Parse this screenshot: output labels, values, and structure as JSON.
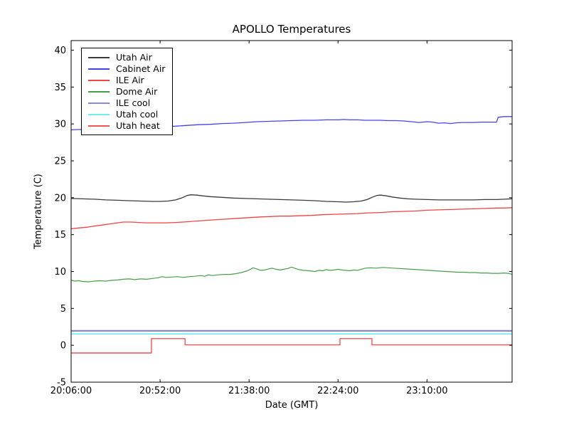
{
  "figure": {
    "background": "#ffffff",
    "axes_background": "#ffffff",
    "spine_color": "#000000"
  },
  "chart_data": {
    "type": "line",
    "title": "APOLLO Temperatures",
    "xlabel": "Date (GMT)",
    "ylabel": "Temperature (C)",
    "grid": false,
    "legend_position": "upper left",
    "x_axis": {
      "unit": "minutes after 20:06:00 GMT",
      "min": 0,
      "max": 228,
      "ticks": [
        {
          "t": 0,
          "label": "20:06:00"
        },
        {
          "t": 46,
          "label": "20:52:00"
        },
        {
          "t": 92,
          "label": "21:38:00"
        },
        {
          "t": 138,
          "label": "22:24:00"
        },
        {
          "t": 184,
          "label": "23:10:00"
        }
      ]
    },
    "y_axis": {
      "min": -5,
      "max": 41.3,
      "ticks": [
        {
          "v": -5,
          "label": "-5"
        },
        {
          "v": 0,
          "label": "0"
        },
        {
          "v": 5,
          "label": "5"
        },
        {
          "v": 10,
          "label": "10"
        },
        {
          "v": 15,
          "label": "15"
        },
        {
          "v": 20,
          "label": "20"
        },
        {
          "v": 25,
          "label": "25"
        },
        {
          "v": 30,
          "label": "30"
        },
        {
          "v": 35,
          "label": "35"
        },
        {
          "v": 40,
          "label": "40"
        }
      ]
    },
    "series": [
      {
        "name": "Utah Air",
        "color": "#3a3a3a",
        "width": 1.3,
        "points": [
          [
            0,
            19.9
          ],
          [
            6,
            19.85
          ],
          [
            12,
            19.8
          ],
          [
            18,
            19.7
          ],
          [
            24,
            19.65
          ],
          [
            30,
            19.6
          ],
          [
            36,
            19.55
          ],
          [
            42,
            19.5
          ],
          [
            46,
            19.5
          ],
          [
            50,
            19.55
          ],
          [
            54,
            19.7
          ],
          [
            57,
            19.95
          ],
          [
            60,
            20.3
          ],
          [
            62,
            20.4
          ],
          [
            65,
            20.35
          ],
          [
            68,
            20.25
          ],
          [
            72,
            20.15
          ],
          [
            78,
            20.05
          ],
          [
            84,
            19.95
          ],
          [
            90,
            19.9
          ],
          [
            96,
            19.85
          ],
          [
            102,
            19.8
          ],
          [
            108,
            19.75
          ],
          [
            114,
            19.7
          ],
          [
            120,
            19.65
          ],
          [
            126,
            19.6
          ],
          [
            132,
            19.5
          ],
          [
            138,
            19.45
          ],
          [
            142,
            19.4
          ],
          [
            146,
            19.45
          ],
          [
            150,
            19.55
          ],
          [
            153,
            19.75
          ],
          [
            156,
            20.1
          ],
          [
            158,
            20.3
          ],
          [
            160,
            20.35
          ],
          [
            163,
            20.25
          ],
          [
            166,
            20.1
          ],
          [
            170,
            19.95
          ],
          [
            174,
            19.85
          ],
          [
            178,
            19.8
          ],
          [
            184,
            19.75
          ],
          [
            190,
            19.7
          ],
          [
            196,
            19.7
          ],
          [
            202,
            19.7
          ],
          [
            208,
            19.7
          ],
          [
            214,
            19.75
          ],
          [
            220,
            19.75
          ],
          [
            228,
            19.85
          ]
        ]
      },
      {
        "name": "Cabinet Air",
        "color": "#4444ec",
        "width": 1.3,
        "points": [
          [
            0,
            29.2
          ],
          [
            6,
            29.25
          ],
          [
            12,
            29.3
          ],
          [
            18,
            29.3
          ],
          [
            24,
            29.35
          ],
          [
            30,
            29.4
          ],
          [
            36,
            29.5
          ],
          [
            42,
            29.55
          ],
          [
            48,
            29.65
          ],
          [
            54,
            29.7
          ],
          [
            60,
            29.8
          ],
          [
            66,
            29.9
          ],
          [
            72,
            29.95
          ],
          [
            78,
            30.05
          ],
          [
            84,
            30.1
          ],
          [
            90,
            30.2
          ],
          [
            96,
            30.3
          ],
          [
            102,
            30.35
          ],
          [
            108,
            30.4
          ],
          [
            114,
            30.45
          ],
          [
            120,
            30.5
          ],
          [
            126,
            30.5
          ],
          [
            132,
            30.55
          ],
          [
            138,
            30.55
          ],
          [
            141,
            30.6
          ],
          [
            144,
            30.55
          ],
          [
            148,
            30.55
          ],
          [
            152,
            30.5
          ],
          [
            156,
            30.5
          ],
          [
            160,
            30.5
          ],
          [
            164,
            30.45
          ],
          [
            168,
            30.45
          ],
          [
            172,
            30.4
          ],
          [
            176,
            30.3
          ],
          [
            180,
            30.2
          ],
          [
            184,
            30.3
          ],
          [
            187,
            30.25
          ],
          [
            190,
            30.1
          ],
          [
            193,
            30.15
          ],
          [
            196,
            30.05
          ],
          [
            199,
            30.15
          ],
          [
            202,
            30.2
          ],
          [
            205,
            30.2
          ],
          [
            208,
            30.2
          ],
          [
            212,
            30.25
          ],
          [
            216,
            30.25
          ],
          [
            220,
            30.25
          ],
          [
            220.8,
            30.9
          ],
          [
            224,
            31.0
          ],
          [
            228,
            31.0
          ]
        ]
      },
      {
        "name": "ILE Air",
        "color": "#f04343",
        "width": 1.3,
        "points": [
          [
            0,
            15.8
          ],
          [
            4,
            15.9
          ],
          [
            8,
            16.0
          ],
          [
            12,
            16.15
          ],
          [
            16,
            16.3
          ],
          [
            20,
            16.45
          ],
          [
            24,
            16.6
          ],
          [
            27,
            16.7
          ],
          [
            31,
            16.7
          ],
          [
            35,
            16.65
          ],
          [
            39,
            16.6
          ],
          [
            44,
            16.6
          ],
          [
            49,
            16.6
          ],
          [
            54,
            16.65
          ],
          [
            58,
            16.7
          ],
          [
            63,
            16.8
          ],
          [
            68,
            16.9
          ],
          [
            74,
            17.0
          ],
          [
            80,
            17.1
          ],
          [
            86,
            17.2
          ],
          [
            92,
            17.3
          ],
          [
            98,
            17.4
          ],
          [
            103,
            17.45
          ],
          [
            108,
            17.5
          ],
          [
            113,
            17.5
          ],
          [
            118,
            17.55
          ],
          [
            124,
            17.6
          ],
          [
            130,
            17.7
          ],
          [
            136,
            17.75
          ],
          [
            142,
            17.8
          ],
          [
            148,
            17.85
          ],
          [
            154,
            17.95
          ],
          [
            160,
            18.0
          ],
          [
            166,
            18.1
          ],
          [
            172,
            18.15
          ],
          [
            178,
            18.2
          ],
          [
            184,
            18.3
          ],
          [
            190,
            18.35
          ],
          [
            196,
            18.4
          ],
          [
            202,
            18.45
          ],
          [
            208,
            18.5
          ],
          [
            214,
            18.55
          ],
          [
            220,
            18.6
          ],
          [
            224,
            18.6
          ],
          [
            228,
            18.65
          ]
        ]
      },
      {
        "name": "Dome Air",
        "color": "#44a048",
        "width": 1.2,
        "points": [
          [
            0,
            8.8
          ],
          [
            2,
            8.7
          ],
          [
            4,
            8.75
          ],
          [
            6,
            8.65
          ],
          [
            9,
            8.6
          ],
          [
            12,
            8.7
          ],
          [
            15,
            8.75
          ],
          [
            18,
            8.7
          ],
          [
            21,
            8.8
          ],
          [
            24,
            8.85
          ],
          [
            27,
            8.95
          ],
          [
            30,
            9.0
          ],
          [
            33,
            8.9
          ],
          [
            36,
            9.0
          ],
          [
            39,
            8.95
          ],
          [
            42,
            9.05
          ],
          [
            45,
            9.15
          ],
          [
            47,
            9.3
          ],
          [
            49,
            9.2
          ],
          [
            52,
            9.25
          ],
          [
            55,
            9.3
          ],
          [
            58,
            9.2
          ],
          [
            61,
            9.3
          ],
          [
            64,
            9.35
          ],
          [
            67,
            9.45
          ],
          [
            69,
            9.35
          ],
          [
            71,
            9.55
          ],
          [
            73,
            9.45
          ],
          [
            76,
            9.55
          ],
          [
            79,
            9.6
          ],
          [
            82,
            9.6
          ],
          [
            85,
            9.7
          ],
          [
            88,
            9.85
          ],
          [
            91,
            10.1
          ],
          [
            93,
            10.35
          ],
          [
            94,
            10.5
          ],
          [
            96,
            10.35
          ],
          [
            98,
            10.15
          ],
          [
            100,
            10.2
          ],
          [
            102,
            10.35
          ],
          [
            104,
            10.45
          ],
          [
            106,
            10.3
          ],
          [
            108,
            10.2
          ],
          [
            110,
            10.3
          ],
          [
            112,
            10.4
          ],
          [
            114,
            10.6
          ],
          [
            116,
            10.4
          ],
          [
            118,
            10.25
          ],
          [
            120,
            10.15
          ],
          [
            123,
            10.1
          ],
          [
            126,
            10.0
          ],
          [
            128,
            10.15
          ],
          [
            130,
            10.1
          ],
          [
            132,
            10.25
          ],
          [
            134,
            10.15
          ],
          [
            136,
            10.2
          ],
          [
            138,
            10.3
          ],
          [
            140,
            10.2
          ],
          [
            142,
            10.15
          ],
          [
            144,
            10.1
          ],
          [
            146,
            10.2
          ],
          [
            148,
            10.15
          ],
          [
            150,
            10.3
          ],
          [
            152,
            10.45
          ],
          [
            155,
            10.5
          ],
          [
            158,
            10.45
          ],
          [
            161,
            10.55
          ],
          [
            164,
            10.5
          ],
          [
            167,
            10.45
          ],
          [
            170,
            10.4
          ],
          [
            173,
            10.35
          ],
          [
            176,
            10.3
          ],
          [
            179,
            10.25
          ],
          [
            182,
            10.2
          ],
          [
            185,
            10.15
          ],
          [
            188,
            10.1
          ],
          [
            191,
            10.05
          ],
          [
            194,
            10.0
          ],
          [
            197,
            9.95
          ],
          [
            200,
            9.9
          ],
          [
            203,
            9.9
          ],
          [
            206,
            9.85
          ],
          [
            209,
            9.85
          ],
          [
            212,
            9.8
          ],
          [
            215,
            9.8
          ],
          [
            218,
            9.75
          ],
          [
            221,
            9.75
          ],
          [
            224,
            9.8
          ],
          [
            226,
            9.75
          ],
          [
            228,
            9.6
          ]
        ]
      },
      {
        "name": "ILE cool",
        "color": "#8a8ac0",
        "width": 2.2,
        "points": [
          [
            0,
            1.95
          ],
          [
            228,
            1.95
          ]
        ]
      },
      {
        "name": "Utah cool",
        "color": "#72f0f0",
        "width": 1.8,
        "points": [
          [
            0,
            1.55
          ],
          [
            228,
            1.55
          ]
        ]
      },
      {
        "name": "Utah heat",
        "color": "#f15454",
        "width": 1.4,
        "points": [
          [
            0,
            -1.05
          ],
          [
            41.5,
            -1.05
          ],
          [
            41.5,
            0.9
          ],
          [
            58.9,
            0.9
          ],
          [
            58.9,
            0.05
          ],
          [
            139,
            0.05
          ],
          [
            139,
            0.9
          ],
          [
            155.5,
            0.9
          ],
          [
            155.5,
            0.05
          ],
          [
            228,
            0.05
          ]
        ]
      }
    ]
  }
}
